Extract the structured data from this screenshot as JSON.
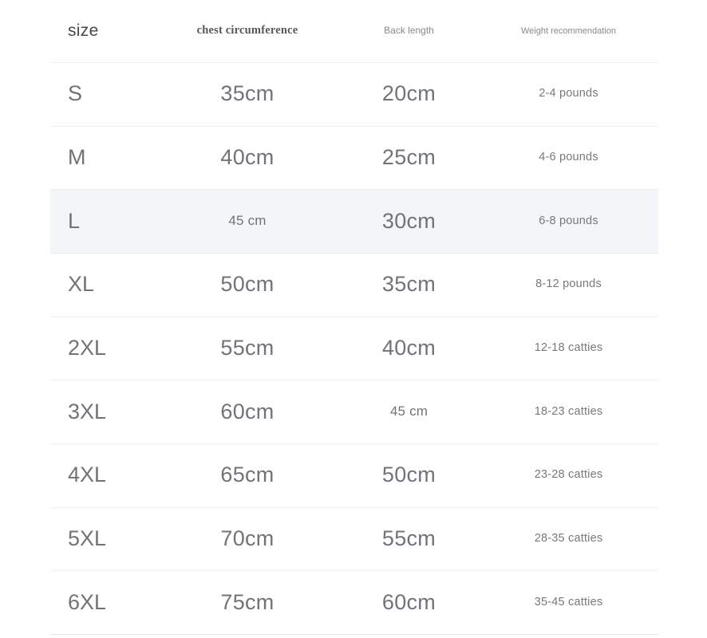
{
  "table": {
    "columns": [
      {
        "key": "size",
        "label": "size"
      },
      {
        "key": "chest",
        "label": "chest circumference"
      },
      {
        "key": "back",
        "label": "Back length"
      },
      {
        "key": "weight",
        "label": "Weight recommendation"
      }
    ],
    "rows": [
      {
        "size": "S",
        "chest": "35cm",
        "back": "20cm",
        "weight": "2-4 pounds"
      },
      {
        "size": "M",
        "chest": "40cm",
        "back": "25cm",
        "weight": "4-6 pounds"
      },
      {
        "size": "L",
        "chest": "45 cm",
        "back": "30cm",
        "weight": "6-8 pounds",
        "highlighted": true,
        "chest_small": true
      },
      {
        "size": "XL",
        "chest": "50cm",
        "back": "35cm",
        "weight": "8-12 pounds"
      },
      {
        "size": "2XL",
        "chest": "55cm",
        "back": "40cm",
        "weight": "12-18 catties"
      },
      {
        "size": "3XL",
        "chest": "60cm",
        "back": "45 cm",
        "weight": "18-23 catties",
        "back_small": true
      },
      {
        "size": "4XL",
        "chest": "65cm",
        "back": "50cm",
        "weight": "23-28 catties"
      },
      {
        "size": "5XL",
        "chest": "70cm",
        "back": "55cm",
        "weight": "28-35 catties"
      },
      {
        "size": "6XL",
        "chest": "75cm",
        "back": "60cm",
        "weight": "35-45 catties"
      }
    ]
  },
  "colors": {
    "highlight_row": "#f3f5f9",
    "divider": "#ecedf1",
    "text_primary": "#707478",
    "header_size_text": "#46484b",
    "header_small_text": "#87898c"
  }
}
